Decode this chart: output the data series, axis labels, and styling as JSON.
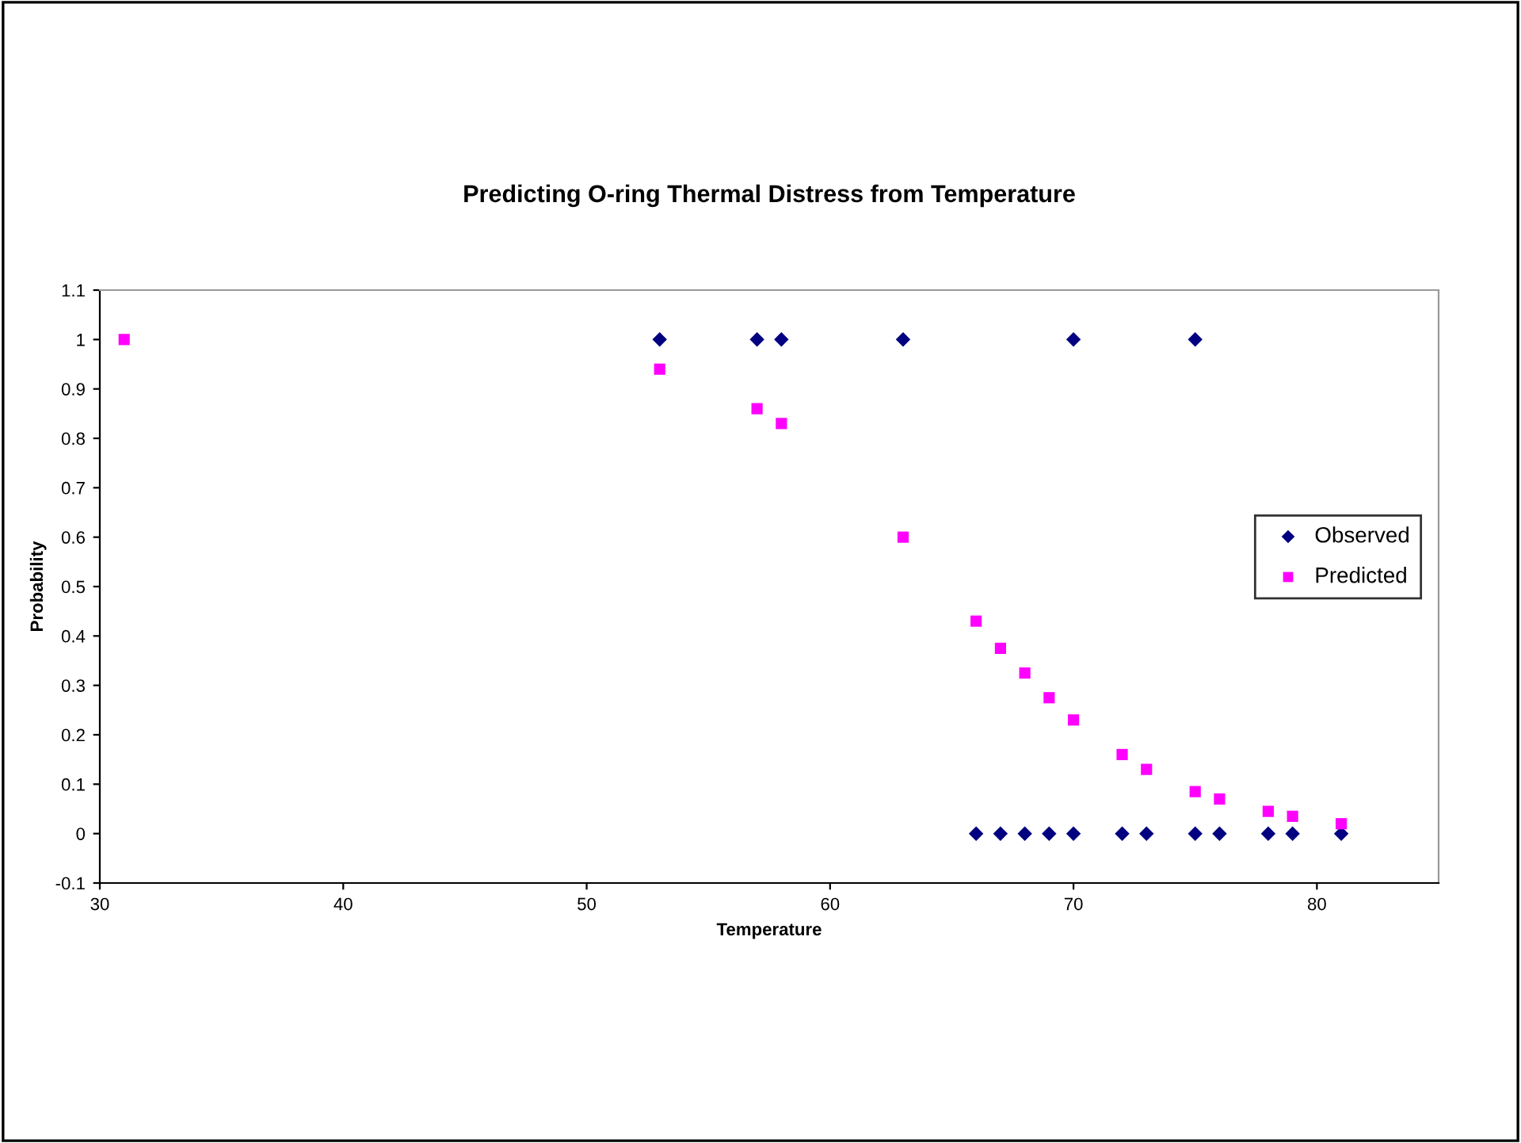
{
  "chart_data": {
    "type": "scatter",
    "title": "Predicting O-ring Thermal Distress from Temperature",
    "xlabel": "Temperature",
    "ylabel": "Probability",
    "xlim": [
      30,
      85
    ],
    "xticks": [
      30,
      40,
      50,
      60,
      70,
      80
    ],
    "ylim": [
      -0.1,
      1.1
    ],
    "yticks": [
      -0.1,
      0,
      0.1,
      0.2,
      0.3,
      0.4,
      0.5,
      0.6,
      0.7,
      0.8,
      0.9,
      1,
      1.1
    ],
    "grid": false,
    "legend": "right",
    "series": [
      {
        "name": "Observed",
        "color": "#000080",
        "marker": "diamond",
        "x": [
          53,
          57,
          58,
          63,
          70,
          75,
          66,
          67,
          68,
          69,
          70,
          72,
          73,
          75,
          76,
          78,
          79,
          81
        ],
        "values": [
          1,
          1,
          1,
          1,
          1,
          1,
          0,
          0,
          0,
          0,
          0,
          0,
          0,
          0,
          0,
          0,
          0,
          0
        ]
      },
      {
        "name": "Predicted",
        "color": "#ff00ff",
        "marker": "square",
        "x": [
          31,
          53,
          57,
          58,
          63,
          66,
          67,
          68,
          69,
          70,
          72,
          73,
          75,
          76,
          78,
          79,
          81
        ],
        "values": [
          1,
          0.94,
          0.86,
          0.83,
          0.6,
          0.43,
          0.375,
          0.325,
          0.275,
          0.23,
          0.16,
          0.13,
          0.085,
          0.07,
          0.045,
          0.035,
          0.02
        ]
      }
    ]
  }
}
